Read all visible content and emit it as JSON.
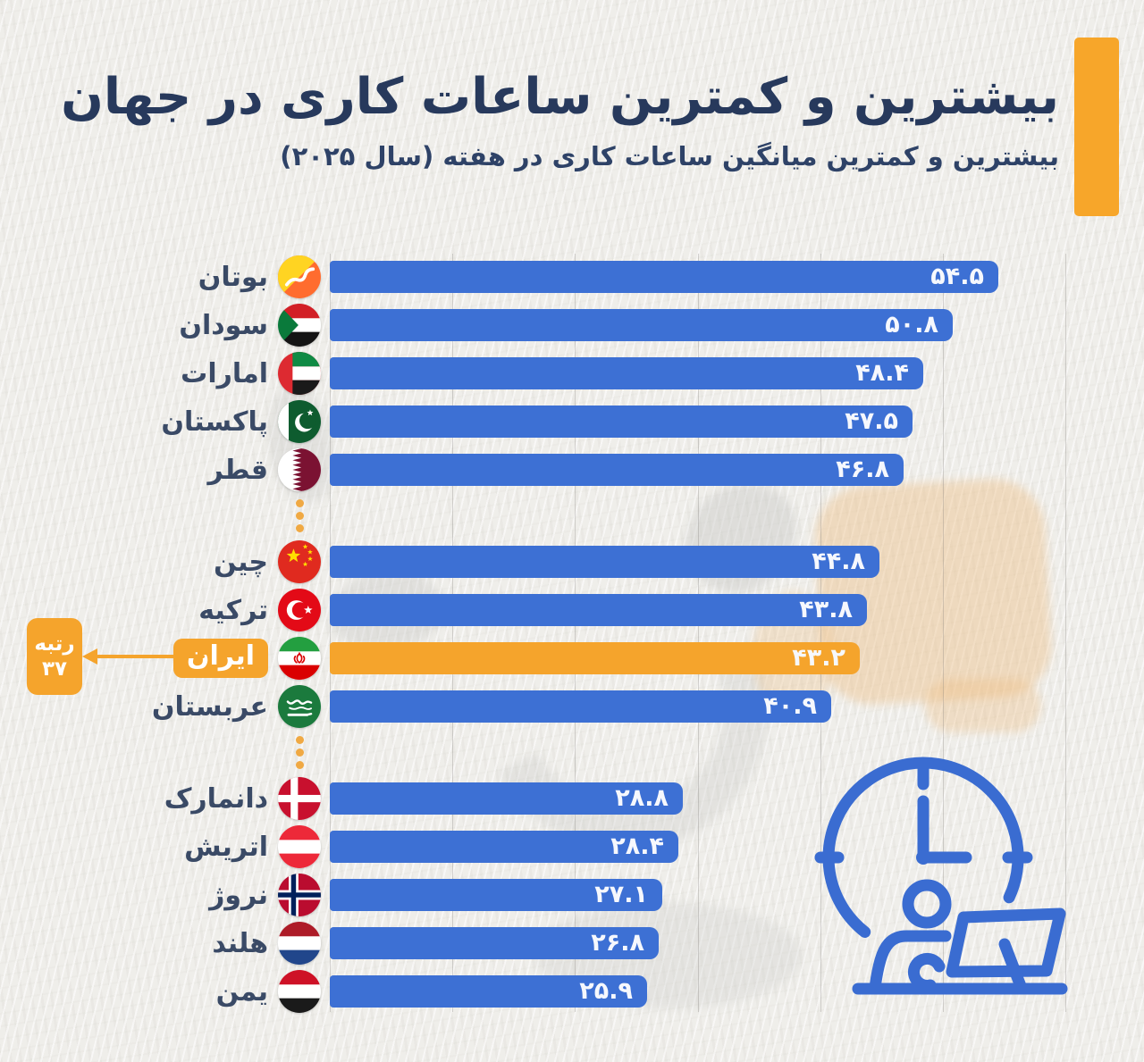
{
  "chart_data": {
    "type": "bar",
    "orientation": "horizontal",
    "title": "بیشترین و کمترین ساعات کاری در جهان",
    "subtitle": "بیشترین و کمترین میانگین ساعات کاری در هفته (سال ۲۰۲۵)",
    "categories": [
      "بوتان",
      "سودان",
      "امارات",
      "پاکستان",
      "قطر",
      "چین",
      "ترکیه",
      "ایران",
      "عربستان",
      "دانمارک",
      "اتریش",
      "نروژ",
      "هلند",
      "یمن"
    ],
    "values": [
      54.5,
      50.8,
      48.4,
      47.5,
      46.8,
      44.8,
      43.8,
      43.2,
      40.9,
      28.8,
      28.4,
      27.1,
      26.8,
      25.9
    ],
    "value_labels": [
      "۵۴.۵",
      "۵۰.۸",
      "۴۸.۴",
      "۴۷.۵",
      "۴۶.۸",
      "۴۴.۸",
      "۴۳.۸",
      "۴۳.۲",
      "۴۰.۹",
      "۲۸.۸",
      "۲۸.۴",
      "۲۷.۱",
      "۲۶.۸",
      "۲۵.۹"
    ],
    "flags": [
      "bhutan-flag-icon",
      "sudan-flag-icon",
      "uae-flag-icon",
      "pakistan-flag-icon",
      "qatar-flag-icon",
      "china-flag-icon",
      "turkey-flag-icon",
      "iran-flag-icon",
      "saudi-arabia-flag-icon",
      "denmark-flag-icon",
      "austria-flag-icon",
      "norway-flag-icon",
      "netherlands-flag-icon",
      "yemen-flag-icon"
    ],
    "group_breaks_after_index": [
      4,
      8
    ],
    "highlight_index": 7,
    "highlight_annotation": {
      "line1": "رتبه",
      "line2": "۳۷"
    },
    "xlim": [
      0,
      60
    ],
    "gridlines": [
      0,
      10,
      20,
      30,
      40,
      50,
      60
    ],
    "grid_visible": true,
    "legend": "none"
  },
  "colors": {
    "bar_blue": "#3d70d4",
    "highlight_orange": "#f5a42c",
    "accent_orange": "#f7a62a",
    "dot_orange": "#f0a943",
    "title_navy": "#27395c",
    "subtitle_navy": "#2e4267",
    "label_navy": "#3a4a66",
    "value_text": "#f6f8fd",
    "clock_blue": "#3a6cd1",
    "paper": "#efeeea"
  },
  "decor": {
    "illustration": "clock-person-laptop-illustration",
    "separator_icon": "vertical-ellipsis-dots-icon",
    "watermark": "faded-logo-watermark",
    "accent": "title-accent-bar"
  }
}
